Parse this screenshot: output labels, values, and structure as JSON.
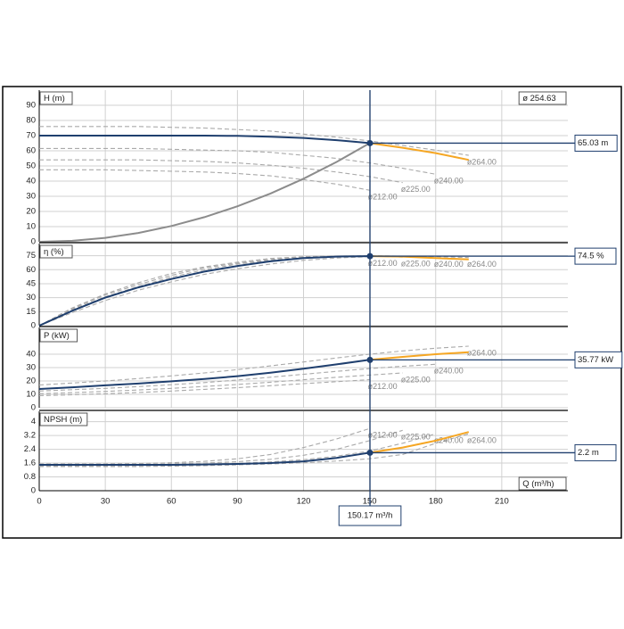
{
  "chart_data": [
    {
      "type": "line",
      "ylabel": "H (m)",
      "annotation": "ø 254.63",
      "grid": true,
      "x": [
        0,
        15,
        30,
        45,
        60,
        75,
        90,
        105,
        120,
        135,
        150,
        165,
        180,
        195,
        210,
        225
      ],
      "xlim": [
        0,
        240
      ],
      "xticks": [
        0,
        30,
        60,
        90,
        120,
        150,
        180,
        210
      ],
      "ylim": [
        0,
        100
      ],
      "yticks": [
        0,
        10,
        20,
        30,
        40,
        50,
        60,
        70,
        80,
        90
      ],
      "marker": {
        "value": 65.03,
        "label": "65.03 m"
      },
      "series": [
        {
          "name": "ø264.00",
          "color": "#aaaaaa",
          "dashed": true,
          "values": [
            76,
            76,
            76,
            76,
            75.5,
            75,
            74,
            73,
            71,
            69,
            66.5,
            63.5,
            60.5,
            57,
            null,
            null
          ]
        },
        {
          "name": "ø240.00",
          "color": "#aaaaaa",
          "dashed": true,
          "values": [
            61.5,
            61.5,
            61.5,
            61.5,
            61,
            60.5,
            60,
            59,
            57,
            55,
            52,
            48.5,
            44.5,
            null,
            null,
            null
          ]
        },
        {
          "name": "ø225.00",
          "color": "#aaaaaa",
          "dashed": true,
          "values": [
            54,
            54,
            54,
            54,
            53.5,
            53,
            52,
            50.5,
            48.5,
            46,
            43,
            39,
            null,
            null,
            null,
            null
          ]
        },
        {
          "name": "ø212.00",
          "color": "#aaaaaa",
          "dashed": true,
          "values": [
            47.5,
            47.5,
            47.5,
            47,
            46.5,
            46,
            45,
            43.5,
            41,
            38,
            34,
            null,
            null,
            null,
            null,
            null
          ]
        },
        {
          "color": "#8c8c8c",
          "values": [
            0,
            0.65,
            2.6,
            5.85,
            10.4,
            16.25,
            23.4,
            31.85,
            41.6,
            52.65,
            65,
            null,
            null,
            null,
            null,
            null
          ]
        },
        {
          "color": "#1f3f6e",
          "values": [
            70,
            70,
            70,
            70,
            70,
            70,
            69.8,
            69.3,
            68.5,
            67,
            65.03,
            null,
            null,
            null,
            null,
            null
          ]
        },
        {
          "color": "#f5a623",
          "values": [
            null,
            null,
            null,
            null,
            null,
            null,
            null,
            null,
            null,
            null,
            65.03,
            62,
            58.5,
            54,
            null,
            null
          ]
        }
      ]
    },
    {
      "type": "line",
      "ylabel": "η (%)",
      "grid": true,
      "x": [
        0,
        15,
        30,
        45,
        60,
        75,
        90,
        105,
        120,
        135,
        150,
        165,
        180,
        195,
        210,
        225
      ],
      "xlim": [
        0,
        240
      ],
      "xticks": [
        0,
        30,
        60,
        90,
        120,
        150,
        180,
        210
      ],
      "ylim": [
        0,
        88
      ],
      "yticks": [
        0,
        15,
        30,
        45,
        60,
        75
      ],
      "marker": {
        "value": 74.5,
        "label": "74.5 %"
      },
      "series": [
        {
          "name": "ø264.00",
          "color": "#aaaaaa",
          "dashed": true,
          "values": [
            0,
            14,
            27,
            38,
            47,
            55,
            61,
            66,
            70,
            72.5,
            74,
            74.5,
            74,
            73,
            null,
            null
          ]
        },
        {
          "name": "ø240.00",
          "color": "#aaaaaa",
          "dashed": true,
          "values": [
            0,
            17,
            31,
            42,
            52,
            60,
            66,
            70,
            73,
            74.5,
            75,
            74.5,
            73,
            null,
            null,
            null
          ]
        },
        {
          "name": "ø225.00",
          "color": "#aaaaaa",
          "dashed": true,
          "values": [
            0,
            18,
            33,
            44,
            54,
            62,
            67,
            71,
            73.5,
            74.5,
            74.5,
            73.5,
            null,
            null,
            null,
            null
          ]
        },
        {
          "name": "ø212.00",
          "color": "#aaaaaa",
          "dashed": true,
          "values": [
            0,
            19,
            34,
            46,
            56,
            63,
            68,
            72,
            74,
            74.5,
            74,
            null,
            null,
            null,
            null,
            null
          ]
        },
        {
          "color": "#1f3f6e",
          "values": [
            0,
            16,
            30,
            41,
            50,
            58,
            64,
            69,
            72.5,
            74,
            74.5,
            null,
            null,
            null,
            null,
            null
          ]
        },
        {
          "color": "#f5a623",
          "values": [
            null,
            null,
            null,
            null,
            null,
            null,
            null,
            null,
            null,
            null,
            74.5,
            74,
            72.5,
            71,
            null,
            null
          ]
        }
      ]
    },
    {
      "type": "line",
      "ylabel": "P (kW)",
      "grid": true,
      "x": [
        0,
        15,
        30,
        45,
        60,
        75,
        90,
        105,
        120,
        135,
        150,
        165,
        180,
        195,
        210,
        225
      ],
      "xlim": [
        0,
        240
      ],
      "xticks": [
        0,
        30,
        60,
        90,
        120,
        150,
        180,
        210
      ],
      "ylim": [
        0,
        60
      ],
      "yticks": [
        0,
        10,
        20,
        30,
        40
      ],
      "marker": {
        "value": 35.77,
        "label": "35.77 kW"
      },
      "series": [
        {
          "name": "ø264.00",
          "color": "#aaaaaa",
          "dashed": true,
          "values": [
            17,
            18.5,
            20,
            21.8,
            23.8,
            26,
            28.5,
            31.3,
            34.2,
            37.2,
            40,
            42.5,
            44.5,
            46,
            null,
            null
          ]
        },
        {
          "name": "ø240.00",
          "color": "#aaaaaa",
          "dashed": true,
          "values": [
            12.5,
            13.5,
            14.5,
            15.8,
            17.2,
            18.8,
            20.7,
            22.8,
            25,
            27.2,
            29.3,
            31,
            32.5,
            null,
            null,
            null
          ]
        },
        {
          "name": "ø225.00",
          "color": "#aaaaaa",
          "dashed": true,
          "values": [
            10.5,
            11.3,
            12.2,
            13.3,
            14.5,
            15.9,
            17.4,
            19.1,
            20.9,
            22.7,
            24.4,
            26,
            null,
            null,
            null,
            null
          ]
        },
        {
          "name": "ø212.00",
          "color": "#aaaaaa",
          "dashed": true,
          "values": [
            9,
            9.7,
            10.5,
            11.4,
            12.5,
            13.7,
            15,
            16.5,
            18,
            19.5,
            21,
            null,
            null,
            null,
            null,
            null
          ]
        },
        {
          "color": "#1f3f6e",
          "values": [
            14,
            15.3,
            16.7,
            18.1,
            19.7,
            21.5,
            23.6,
            26.2,
            29.2,
            32.4,
            35.77,
            null,
            null,
            null,
            null,
            null
          ]
        },
        {
          "color": "#f5a623",
          "values": [
            null,
            null,
            null,
            null,
            null,
            null,
            null,
            null,
            null,
            null,
            35.77,
            38,
            40,
            41.5,
            null,
            null
          ]
        }
      ]
    },
    {
      "type": "line",
      "ylabel": "NPSH (m)",
      "xlabel": "Q (m³/h)",
      "grid": true,
      "x": [
        0,
        15,
        30,
        45,
        60,
        75,
        90,
        105,
        120,
        135,
        150,
        165,
        180,
        195,
        210,
        225
      ],
      "xlim": [
        0,
        240
      ],
      "xticks": [
        0,
        30,
        60,
        90,
        120,
        150,
        180,
        210
      ],
      "ylim": [
        0,
        4.6
      ],
      "yticks": [
        0,
        0.8,
        1.6,
        2.4,
        3.2,
        4
      ],
      "marker": {
        "value": 2.2,
        "label": "2.2 m"
      },
      "marker_x": {
        "value": 150.17,
        "label": "150.17 m³/h"
      },
      "series": [
        {
          "name": "ø264.00",
          "color": "#aaaaaa",
          "dashed": true,
          "values": [
            1.4,
            1.4,
            1.4,
            1.4,
            1.42,
            1.45,
            1.5,
            1.55,
            1.62,
            1.72,
            1.85,
            2.1,
            2.75,
            3.3,
            null,
            null
          ]
        },
        {
          "name": "ø240.00",
          "color": "#aaaaaa",
          "dashed": true,
          "values": [
            1.45,
            1.45,
            1.45,
            1.46,
            1.48,
            1.52,
            1.58,
            1.67,
            1.8,
            2,
            2.3,
            2.75,
            3.3,
            null,
            null,
            null
          ]
        },
        {
          "name": "ø225.00",
          "color": "#aaaaaa",
          "dashed": true,
          "values": [
            1.5,
            1.5,
            1.5,
            1.52,
            1.55,
            1.6,
            1.68,
            1.82,
            2.05,
            2.4,
            2.9,
            3.5,
            null,
            null,
            null,
            null
          ]
        },
        {
          "name": "ø212.00",
          "color": "#aaaaaa",
          "dashed": true,
          "values": [
            1.55,
            1.55,
            1.55,
            1.57,
            1.62,
            1.7,
            1.85,
            2.1,
            2.5,
            3,
            3.6,
            null,
            null,
            null,
            null,
            null
          ]
        },
        {
          "color": "#1f3f6e",
          "values": [
            1.5,
            1.5,
            1.5,
            1.5,
            1.5,
            1.52,
            1.55,
            1.6,
            1.7,
            1.9,
            2.2,
            null,
            null,
            null,
            null,
            null
          ]
        },
        {
          "color": "#f5a623",
          "values": [
            null,
            null,
            null,
            null,
            null,
            null,
            null,
            null,
            null,
            null,
            2.2,
            2.5,
            2.9,
            3.4,
            null,
            null
          ]
        }
      ]
    }
  ]
}
